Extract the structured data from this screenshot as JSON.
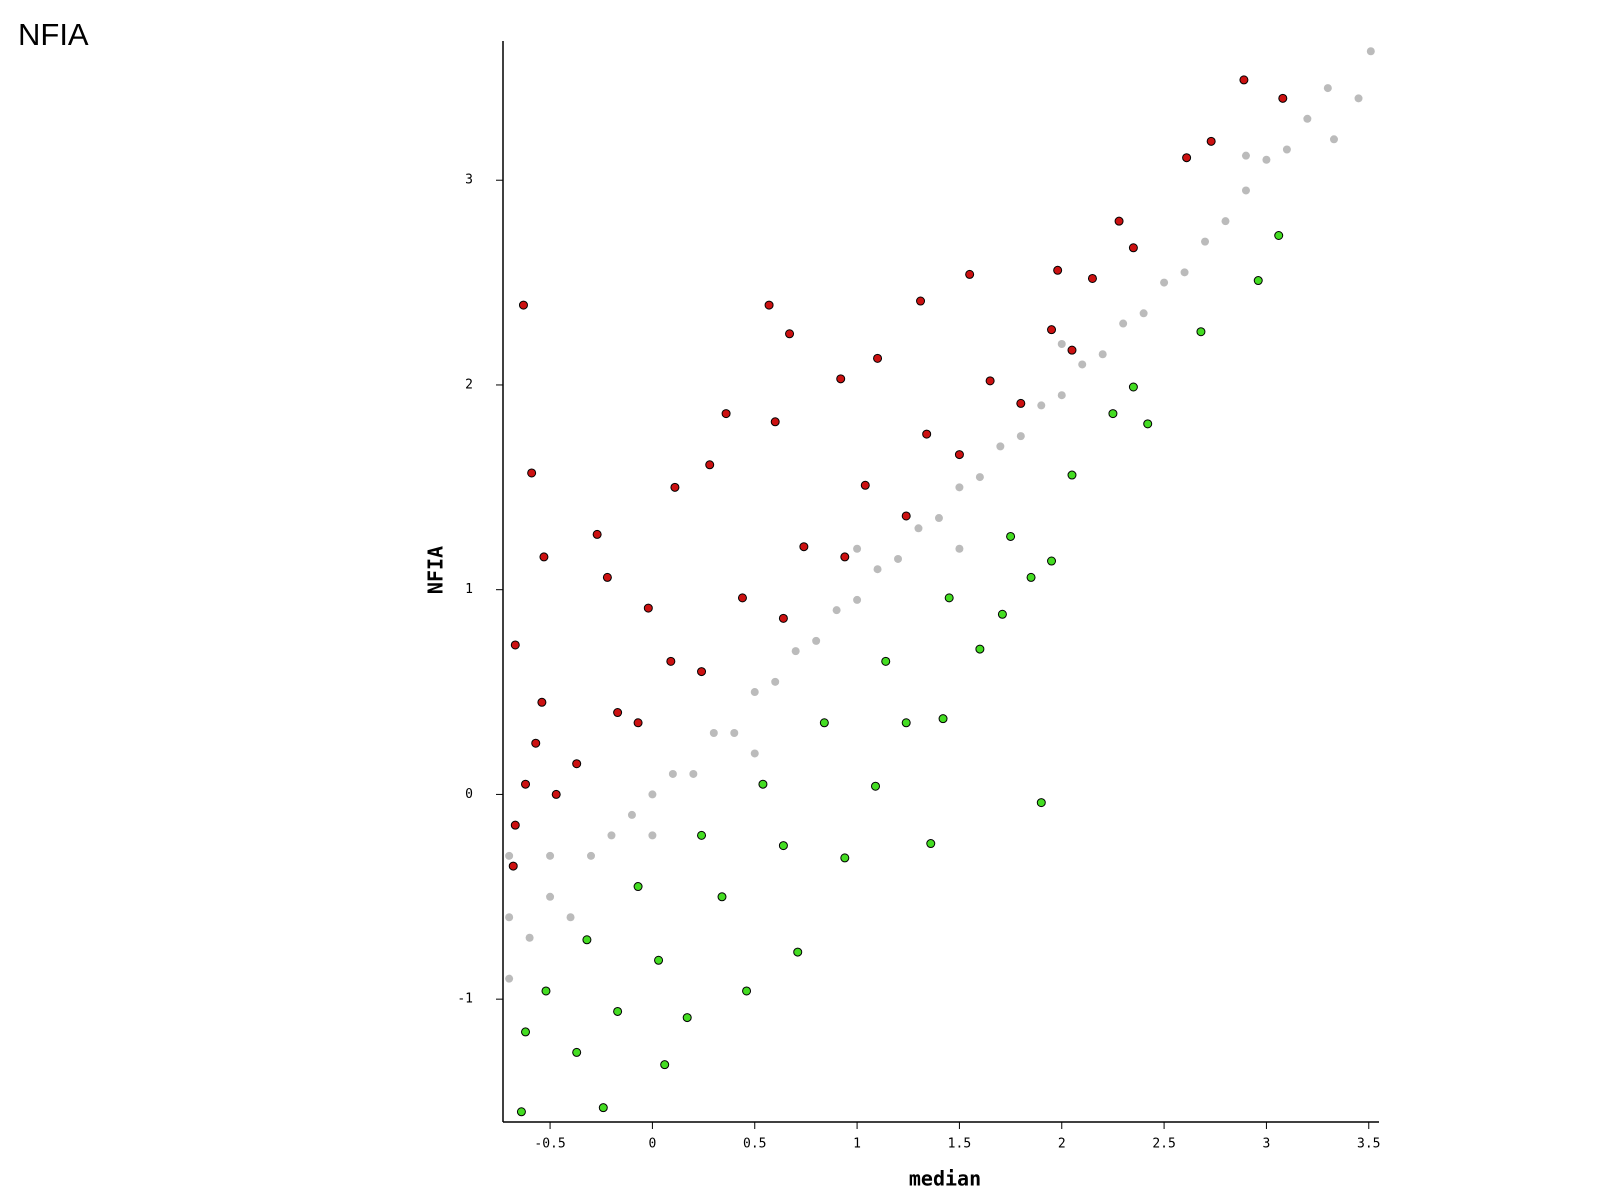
{
  "chart_data": {
    "type": "scatter",
    "title": "NFIA",
    "xlabel": "median",
    "ylabel": "NFIA",
    "xlim": [
      -0.73,
      3.55
    ],
    "ylim": [
      -1.6,
      3.68
    ],
    "xticks": [
      -0.5,
      0,
      0.5,
      1,
      1.5,
      2,
      2.5,
      3,
      3.5
    ],
    "yticks": [
      -1,
      0,
      1,
      2,
      3
    ],
    "grid": false,
    "series": [
      {
        "color": "#bbbbbb",
        "x": [
          -0.7,
          -0.7,
          -0.7,
          -0.6,
          -0.5,
          -0.5,
          -0.4,
          -0.3,
          -0.2,
          -0.1,
          0,
          0,
          0.1,
          0.2,
          0.3,
          0.4,
          0.5,
          0.6,
          0.7,
          0.8,
          0.9,
          1.0,
          1.1,
          1.2,
          1.3,
          1.4,
          1.5,
          1.6,
          1.7,
          1.8,
          1.9,
          2.0,
          2.1,
          2.2,
          2.3,
          2.4,
          2.5,
          2.6,
          2.7,
          2.8,
          2.9,
          3.0,
          3.1,
          3.2,
          3.3,
          3.45,
          3.51,
          3.33,
          2.9,
          0.5,
          1.0,
          1.5,
          2.0
        ],
        "y": [
          -0.6,
          -0.9,
          -0.3,
          -0.7,
          -0.5,
          -0.3,
          -0.6,
          -0.3,
          -0.2,
          -0.1,
          0,
          -0.2,
          0.1,
          0.1,
          0.3,
          0.3,
          0.5,
          0.55,
          0.7,
          0.75,
          0.9,
          0.95,
          1.1,
          1.15,
          1.3,
          1.35,
          1.5,
          1.55,
          1.7,
          1.75,
          1.9,
          1.95,
          2.1,
          2.15,
          2.3,
          2.35,
          2.5,
          2.55,
          2.7,
          2.8,
          2.95,
          3.1,
          3.15,
          3.3,
          3.45,
          3.4,
          3.63,
          3.2,
          3.12,
          0.2,
          1.2,
          1.2,
          2.2
        ]
      },
      {
        "color": "#cc1111",
        "edgecolor": "#000000",
        "x": [
          -0.63,
          0.57,
          0.67,
          -0.59,
          0.36,
          0.6,
          1.55,
          2.89,
          3.08,
          2.73,
          2.61,
          2.28,
          1.98,
          1.31,
          1.1,
          0.92,
          0.28,
          0.11,
          -0.27,
          -0.53,
          -0.67,
          -0.54,
          -0.17,
          0.09,
          0.44,
          0.74,
          1.04,
          1.34,
          1.65,
          1.95,
          2.15,
          2.35,
          -0.67,
          -0.62,
          -0.57,
          -0.47,
          -0.37,
          -0.07,
          0.24,
          0.64,
          0.94,
          1.24,
          1.5,
          1.8,
          2.05,
          -0.68,
          -0.22,
          -0.02
        ],
        "y": [
          2.39,
          2.39,
          2.25,
          1.57,
          1.86,
          1.82,
          2.54,
          3.49,
          3.4,
          3.19,
          3.11,
          2.8,
          2.56,
          2.41,
          2.13,
          2.03,
          1.61,
          1.5,
          1.27,
          1.16,
          0.73,
          0.45,
          0.4,
          0.65,
          0.96,
          1.21,
          1.51,
          1.76,
          2.02,
          2.27,
          2.52,
          2.67,
          -0.15,
          0.05,
          0.25,
          0.0,
          0.15,
          0.35,
          0.6,
          0.86,
          1.16,
          1.36,
          1.66,
          1.91,
          2.17,
          -0.35,
          1.06,
          0.91
        ]
      },
      {
        "color": "#44dd22",
        "edgecolor": "#000000",
        "x": [
          1.9,
          1.36,
          -0.24,
          -0.64,
          0.06,
          3.06,
          2.96,
          2.68,
          2.42,
          1.95,
          1.71,
          1.42,
          1.09,
          0.94,
          0.71,
          0.46,
          0.17,
          -0.62,
          -0.52,
          -0.32,
          -0.07,
          0.24,
          0.54,
          0.84,
          1.14,
          1.45,
          1.75,
          2.05,
          2.25,
          2.35,
          0.34,
          0.03,
          -0.37,
          0.64,
          1.24,
          1.6,
          1.85,
          -0.17
        ],
        "y": [
          -0.04,
          -0.24,
          -1.53,
          -1.55,
          -1.32,
          2.73,
          2.51,
          2.26,
          1.81,
          1.14,
          0.88,
          0.37,
          0.04,
          -0.31,
          -0.77,
          -0.96,
          -1.09,
          -1.16,
          -0.96,
          -0.71,
          -0.45,
          -0.2,
          0.05,
          0.35,
          0.65,
          0.96,
          1.26,
          1.56,
          1.86,
          1.99,
          -0.5,
          -0.81,
          -1.26,
          -0.25,
          0.35,
          0.71,
          1.06,
          -1.06
        ]
      }
    ]
  }
}
